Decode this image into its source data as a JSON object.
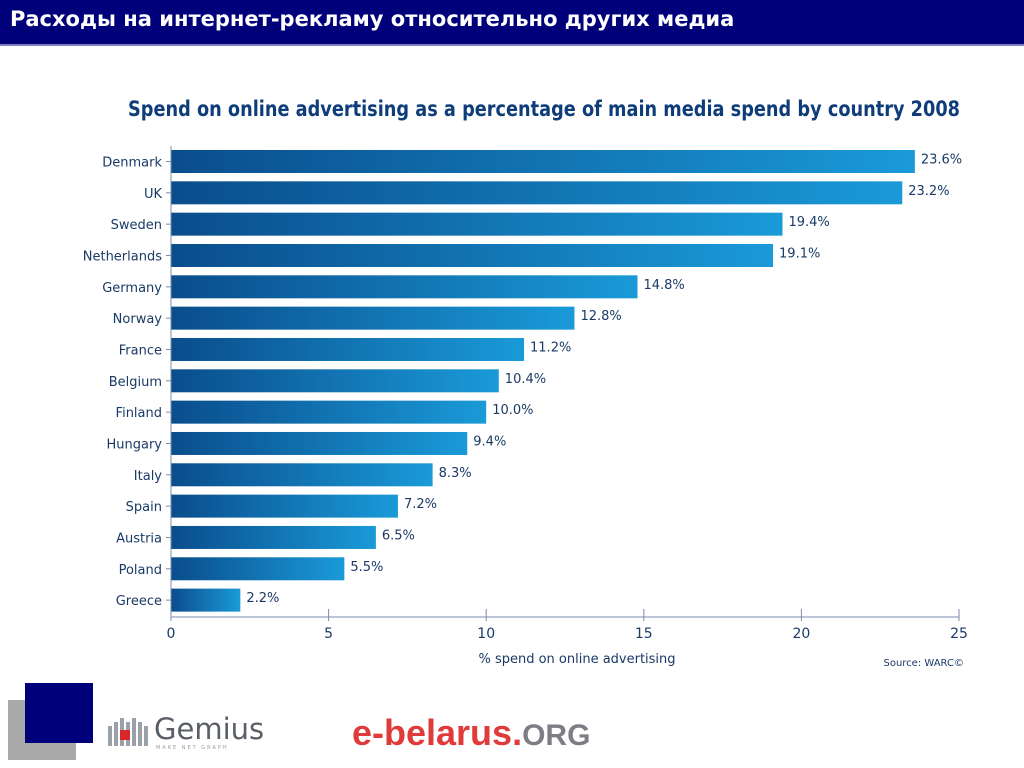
{
  "slide": {
    "title": "Расходы на интернет-рекламу относительно других медиа"
  },
  "chart_data": {
    "type": "bar",
    "orientation": "horizontal",
    "title": "Spend on online advertising as a percentage of main media spend by country 2008",
    "xlabel": "% spend on online advertising",
    "ylabel": "",
    "source": "Source: WARC©",
    "categories": [
      "Denmark",
      "UK",
      "Sweden",
      "Netherlands",
      "Germany",
      "Norway",
      "France",
      "Belgium",
      "Finland",
      "Hungary",
      "Italy",
      "Spain",
      "Austria",
      "Poland",
      "Greece"
    ],
    "values": [
      23.6,
      23.2,
      19.4,
      19.1,
      14.8,
      12.8,
      11.2,
      10.4,
      10.0,
      9.4,
      8.3,
      7.2,
      6.5,
      5.5,
      2.2
    ],
    "value_labels": [
      "23.6%",
      "23.2%",
      "19.4%",
      "19.1%",
      "14.8%",
      "12.8%",
      "11.2%",
      "10.4%",
      "10.0%",
      "9.4%",
      "8.3%",
      "7.2%",
      "6.5%",
      "5.5%",
      "2.2%"
    ],
    "xlim": [
      0,
      25
    ],
    "xticks": [
      0,
      5,
      10,
      15,
      20,
      25
    ],
    "grid": false,
    "legend": "none",
    "colors": {
      "bar_dark": "#0a4d8c",
      "bar_light": "#1a9ad8",
      "title": "#0e3d7a",
      "text": "#1a3a66"
    }
  },
  "branding": {
    "gemius_name": "Gemius",
    "gemius_tagline": "MAKE NET GRAPH",
    "ebelarus_name": "e-belarus.",
    "ebelarus_tld": "ORG"
  }
}
